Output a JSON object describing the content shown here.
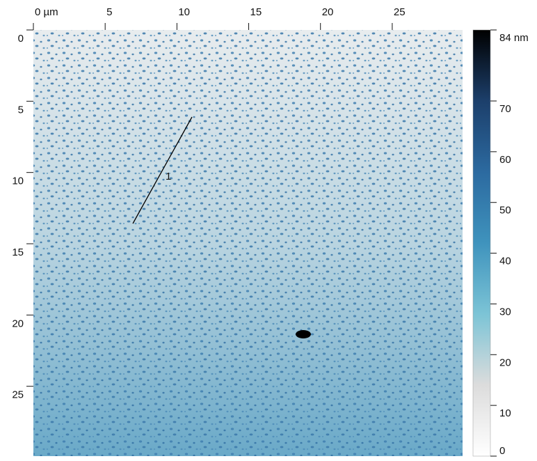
{
  "chart_data": {
    "type": "image",
    "xlim": [
      0,
      29.9
    ],
    "ylim": [
      0,
      29.9
    ],
    "xticks": [
      {
        "value": 0,
        "label": "0 µm"
      },
      5,
      10,
      15,
      20,
      25
    ],
    "yticks": [
      0,
      5,
      10,
      15,
      20,
      25
    ],
    "clim": [
      0,
      84
    ],
    "cticks": [
      0,
      10,
      20,
      30,
      40,
      50,
      60,
      70,
      {
        "value": 84,
        "label": "84 nm"
      }
    ],
    "colormap": [
      "#ffffff",
      "#dcdcdc",
      "#7cc4d6",
      "#3f93bd",
      "#2c6aa0",
      "#1c3f6b",
      "#000000"
    ],
    "annotations": [
      "1"
    ]
  }
}
